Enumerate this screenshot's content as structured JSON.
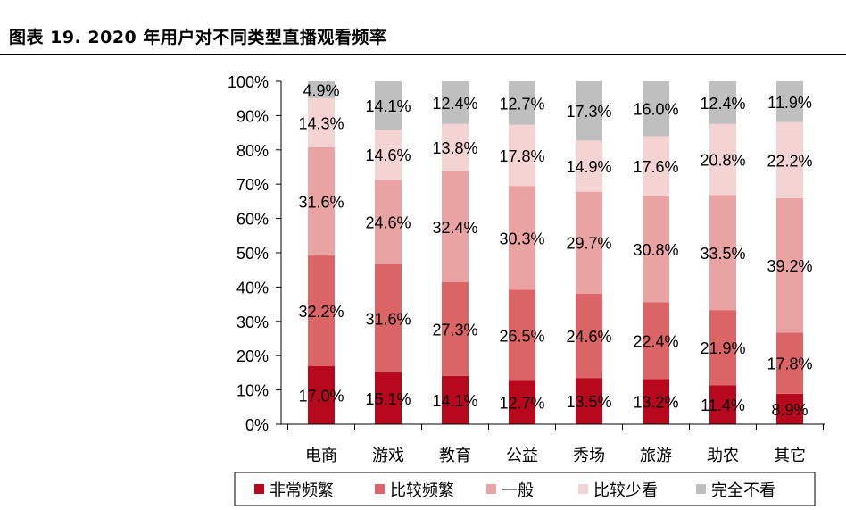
{
  "figure_title": "图表 19. 2020 年用户对不同类型直播观看频率",
  "chart_data": {
    "type": "bar",
    "stacked": true,
    "percent_stacked": true,
    "categories": [
      "电商",
      "游戏",
      "教育",
      "公益",
      "秀场",
      "旅游",
      "助农",
      "其它"
    ],
    "series": [
      {
        "name": "非常频繁",
        "color": "#B8081E",
        "values": [
          17.0,
          15.1,
          14.1,
          12.7,
          13.5,
          13.2,
          11.4,
          8.9
        ]
      },
      {
        "name": "比较频繁",
        "color": "#DB6566",
        "values": [
          32.2,
          31.6,
          27.3,
          26.5,
          24.6,
          22.4,
          21.9,
          17.8
        ]
      },
      {
        "name": "一般",
        "color": "#E8A3A2",
        "values": [
          31.6,
          24.6,
          32.4,
          30.3,
          29.7,
          30.8,
          33.5,
          39.2
        ]
      },
      {
        "name": "比较少看",
        "color": "#F4D4D3",
        "values": [
          14.3,
          14.6,
          13.8,
          17.8,
          14.9,
          17.6,
          20.8,
          22.2
        ]
      },
      {
        "name": "完全不看",
        "color": "#BFBFBF",
        "values": [
          4.9,
          14.1,
          12.4,
          12.7,
          17.3,
          16.0,
          12.4,
          11.9
        ]
      }
    ],
    "y_ticks": [
      "0%",
      "10%",
      "20%",
      "30%",
      "40%",
      "50%",
      "60%",
      "70%",
      "80%",
      "90%",
      "100%"
    ],
    "ylim": [
      0,
      100
    ],
    "grid": false,
    "legend": "bottom"
  }
}
